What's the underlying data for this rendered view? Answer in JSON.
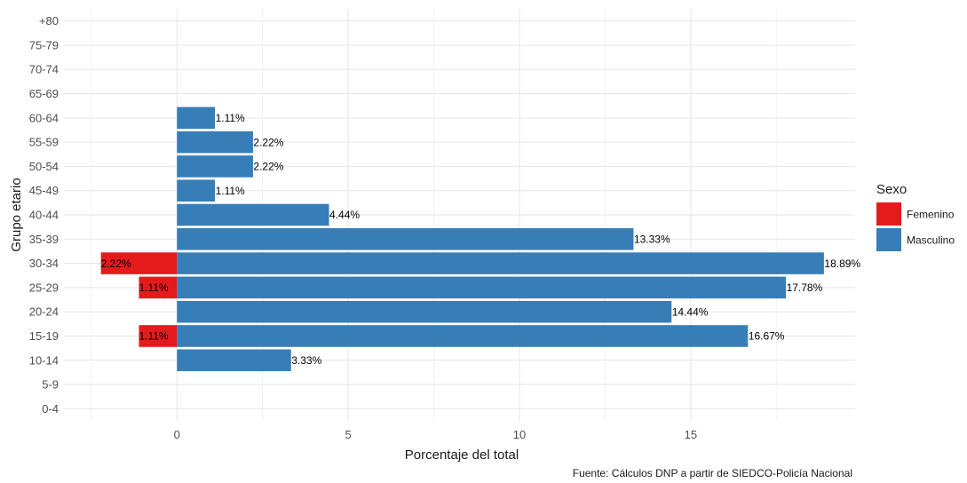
{
  "chart_data": {
    "type": "bar",
    "orientation": "horizontal",
    "categories": [
      "0-4",
      "5-9",
      "10-14",
      "15-19",
      "20-24",
      "25-29",
      "30-34",
      "35-39",
      "40-44",
      "45-49",
      "50-54",
      "55-59",
      "60-64",
      "65-69",
      "70-74",
      "75-79",
      "+80"
    ],
    "series": [
      {
        "name": "Femenino",
        "color": "#e41a1c",
        "values": [
          0,
          0,
          0,
          -1.11,
          0,
          -1.11,
          -2.22,
          0,
          0,
          0,
          0,
          0,
          0,
          0,
          0,
          0,
          0
        ],
        "labels": [
          "",
          "",
          "",
          "1.11%",
          "",
          "1.11%",
          "2.22%",
          "",
          "",
          "",
          "",
          "",
          "",
          "",
          "",
          "",
          ""
        ]
      },
      {
        "name": "Masculino",
        "color": "#377eb8",
        "values": [
          0,
          0,
          3.33,
          16.67,
          14.44,
          17.78,
          18.89,
          13.33,
          4.44,
          1.11,
          2.22,
          2.22,
          1.11,
          0,
          0,
          0,
          0
        ],
        "labels": [
          "",
          "",
          "3.33%",
          "16.67%",
          "14.44%",
          "17.78%",
          "18.89%",
          "13.33%",
          "4.44%",
          "1.11%",
          "2.22%",
          "2.22%",
          "1.11%",
          "",
          "",
          "",
          ""
        ]
      }
    ],
    "xlabel": "Porcentaje del total",
    "ylabel": "Grupo etario",
    "xlim": [
      -3.3,
      19.8
    ],
    "xticks": [
      0,
      5,
      10,
      15
    ],
    "xtick_labels": [
      "0",
      "5",
      "10",
      "15"
    ],
    "grid": true,
    "legend": {
      "title": "Sexo",
      "position": "right"
    },
    "caption": "Fuente: Cálculos DNP a partir de SIEDCO-Policía Nacional"
  }
}
